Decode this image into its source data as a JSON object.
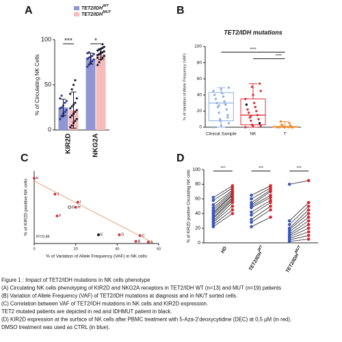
{
  "chart_data": [
    {
      "type": "bar",
      "panel": "A",
      "ylabel": "% of Circulating NK Cells",
      "ylim": [
        0,
        100
      ],
      "yticks": [
        0,
        50,
        100
      ],
      "categories": [
        "KIR2D",
        "NKG2A"
      ],
      "annotations": [
        "***",
        "*"
      ],
      "series": [
        {
          "name": "TET2/IDH",
          "superscript": "WT",
          "color": "#9096d2",
          "point_color": "#2a3a9a",
          "values": [
            25,
            79
          ],
          "errors": [
            9,
            6
          ],
          "points": [
            [
              12,
              15,
              18,
              20,
              22,
              24,
              25,
              27,
              30,
              32,
              35,
              38,
              15
            ],
            [
              70,
              72,
              75,
              76,
              78,
              79,
              80,
              81,
              82,
              84,
              85,
              86,
              74
            ]
          ]
        },
        {
          "name": "TET2/IDH",
          "superscript": "MUT",
          "color": "#f6bcbc",
          "point_color": "#1a1a3a",
          "values": [
            22,
            84
          ],
          "errors": [
            20,
            6
          ],
          "points": [
            [
              3,
              5,
              8,
              10,
              12,
              14,
              16,
              18,
              20,
              22,
              24,
              26,
              28,
              30,
              35,
              40,
              45,
              50,
              55
            ],
            [
              72,
              75,
              78,
              80,
              82,
              83,
              84,
              85,
              86,
              87,
              88,
              89,
              90,
              91,
              92,
              80,
              84,
              86,
              95
            ]
          ]
        }
      ]
    },
    {
      "type": "box",
      "panel": "B",
      "title": "TET2/IDH mutations",
      "ylabel": "% of Variation of Allele Frequency  (VAF)",
      "ylim": [
        0,
        100
      ],
      "yticks": [
        0,
        20,
        40,
        60,
        80,
        100
      ],
      "categories": [
        "Clinical Sample",
        "NK",
        "T"
      ],
      "colors": [
        "#8fb0e0",
        "#e0303a",
        "#f08a30"
      ],
      "annotations": [
        "****",
        "****"
      ],
      "min": [
        0,
        0,
        0
      ],
      "q1": [
        8,
        3,
        0
      ],
      "median": [
        30,
        15,
        0
      ],
      "q3": [
        43,
        35,
        1
      ],
      "max": [
        49,
        54,
        7
      ],
      "points": [
        [
          0,
          2,
          5,
          8,
          12,
          18,
          22,
          25,
          28,
          30,
          32,
          35,
          38,
          40,
          42,
          45,
          47,
          49,
          10,
          15,
          27
        ],
        [
          0,
          1,
          2,
          3,
          5,
          8,
          10,
          12,
          15,
          18,
          20,
          22,
          25,
          28,
          30,
          35,
          40,
          45,
          50,
          54,
          14
        ],
        [
          0,
          0,
          0,
          0,
          0,
          1,
          2,
          3,
          5,
          7,
          0,
          0
        ]
      ]
    },
    {
      "type": "scatter",
      "panel": "C",
      "xlabel": "% of Variation of Allele Frequency  (VAF) in NK cells",
      "ylabel": "% of KIR2D positive NK cells",
      "xlim": [
        0,
        60
      ],
      "xticks": [
        0,
        20,
        40,
        60
      ],
      "ylim": [
        0,
        100
      ],
      "annotation": "R²=0,86",
      "labels": [
        "K",
        "J",
        "I",
        "G",
        "H",
        "F",
        "E",
        "D",
        "C",
        "B",
        "A"
      ],
      "x": [
        0,
        10,
        21,
        17,
        20,
        11,
        31,
        41,
        51,
        49,
        55
      ],
      "y": [
        90,
        68,
        57,
        50,
        50,
        38,
        12,
        12,
        11,
        3,
        2
      ],
      "colors": [
        "#e0303a",
        "#e0303a",
        "#e0303a",
        "#ffffff",
        "#e0303a",
        "#e0303a",
        "#111111",
        "#e0303a",
        "#e0303a",
        "#e0303a",
        "#e0303a"
      ],
      "trendline": {
        "x": [
          0,
          56
        ],
        "y": [
          86,
          3
        ],
        "color": "#e8a070"
      }
    },
    {
      "type": "paired",
      "panel": "D",
      "ylabel": "% of KIR2D positive Circulating NK cells",
      "ylim": [
        0,
        100
      ],
      "yticks": [
        0,
        20,
        40,
        60,
        80,
        100
      ],
      "categories": [
        "HD",
        "TET2/IDH",
        "TET2/IDH"
      ],
      "category_superscripts": [
        null,
        "WT",
        "MUT"
      ],
      "annotations": [
        "***",
        "***",
        "***"
      ],
      "series": [
        {
          "name": "CTRL",
          "color": "#3a55b8",
          "values": [
            [
              22,
              25,
              28,
              30,
              33,
              35,
              38,
              40,
              42,
              45,
              48,
              52,
              58,
              62
            ],
            [
              22,
              28,
              32,
              38,
              42,
              48,
              50,
              52,
              55,
              60,
              65
            ],
            [
              2,
              4,
              6,
              8,
              10,
              12,
              15,
              18,
              20,
              25,
              30,
              80
            ]
          ]
        },
        {
          "name": "DEC",
          "color": "#e0202a",
          "values": [
            [
              40,
              45,
              50,
              55,
              58,
              60,
              62,
              65,
              66,
              68,
              70,
              72,
              75,
              78
            ],
            [
              35,
              45,
              50,
              55,
              58,
              62,
              65,
              70,
              72,
              75,
              78
            ],
            [
              5,
              10,
              15,
              20,
              25,
              30,
              35,
              40,
              45,
              50,
              55,
              85
            ]
          ]
        }
      ]
    }
  ],
  "caption": [
    "Figure 1 : Impact of TET2/IDH mutations in NK cells phenotype",
    "(A) Circulating NK cells phenotyping  of KIR2D and NKG2A receptors in TET2/IDH WT (n=13) and MUT (n=19) patients",
    "(B) Variation of Allele Frequency (VAF) of TET2/IDH mutations at diagnosis and in NK/T sorted cells.",
    "(C) Correlation between VAF of TET2/IDH mutations in NK cells and KIR2D expression.",
    "TET2 mutated patients are depicted in red and IDHMUT patient in black.",
    "(D) KIR2D expression at the surface of NK cells after PBMC treatment with 5-Aza-2'deoxycytidine (DEC) at 0,5 µM (in red).",
    "DMSO treatment was used as CTRL (in blue)."
  ]
}
